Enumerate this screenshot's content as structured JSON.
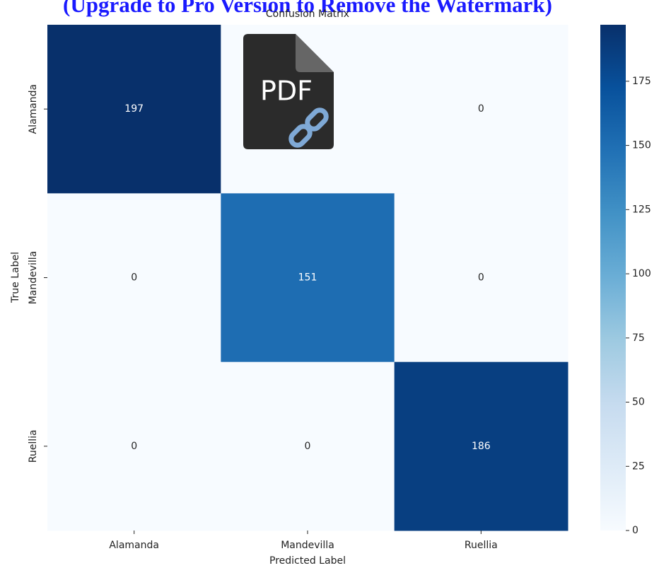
{
  "watermark": {
    "text": "(Upgrade to Pro Version to Remove the Watermark)",
    "icon_label": "PDF"
  },
  "chart_data": {
    "type": "heatmap",
    "title": "Confusion Matrix",
    "x_label": "Predicted Label",
    "y_label": "True Label",
    "x_categories": [
      "Alamanda",
      "Mandevilla",
      "Ruellia"
    ],
    "y_categories": [
      "Alamanda",
      "Mandevilla",
      "Ruellia"
    ],
    "z": [
      [
        197,
        0,
        0
      ],
      [
        0,
        151,
        0
      ],
      [
        0,
        0,
        186
      ]
    ],
    "zlim": [
      0,
      197
    ],
    "zticks": [
      0,
      25,
      50,
      75,
      100,
      125,
      150,
      175
    ],
    "colorscale": [
      "#f7fbff",
      "#deebf7",
      "#c6dbef",
      "#9ecae1",
      "#6baed6",
      "#4292c6",
      "#2171b5",
      "#08519c",
      "#08306b"
    ]
  }
}
